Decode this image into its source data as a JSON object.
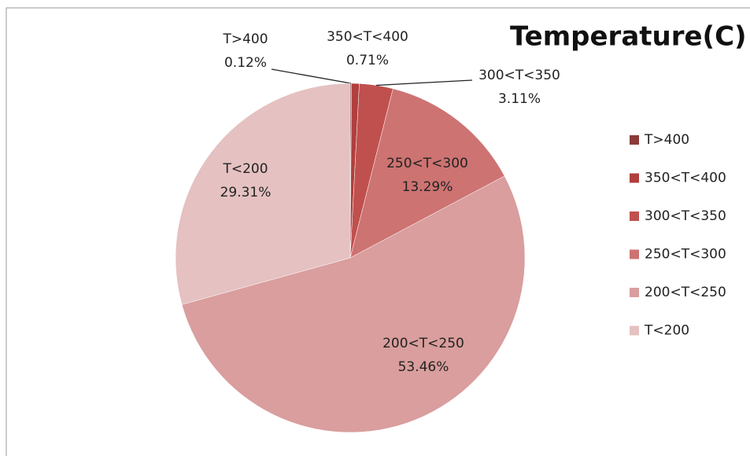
{
  "chart_data": {
    "type": "pie",
    "title": "Temperature(C)",
    "categories": [
      "T>400",
      "350<T<400",
      "300<T<350",
      "250<T<300",
      "200<T<250",
      "T<200"
    ],
    "values": [
      0.12,
      0.71,
      3.11,
      13.29,
      53.46,
      29.31
    ],
    "value_labels": [
      "0.12%",
      "0.71%",
      "3.11%",
      "13.29%",
      "53.46%",
      "29.31%"
    ],
    "colors": [
      "#8b3a3a",
      "#b03f3e",
      "#c0504d",
      "#cd7372",
      "#d99e9d",
      "#e5c1c1"
    ],
    "legend": "right"
  }
}
